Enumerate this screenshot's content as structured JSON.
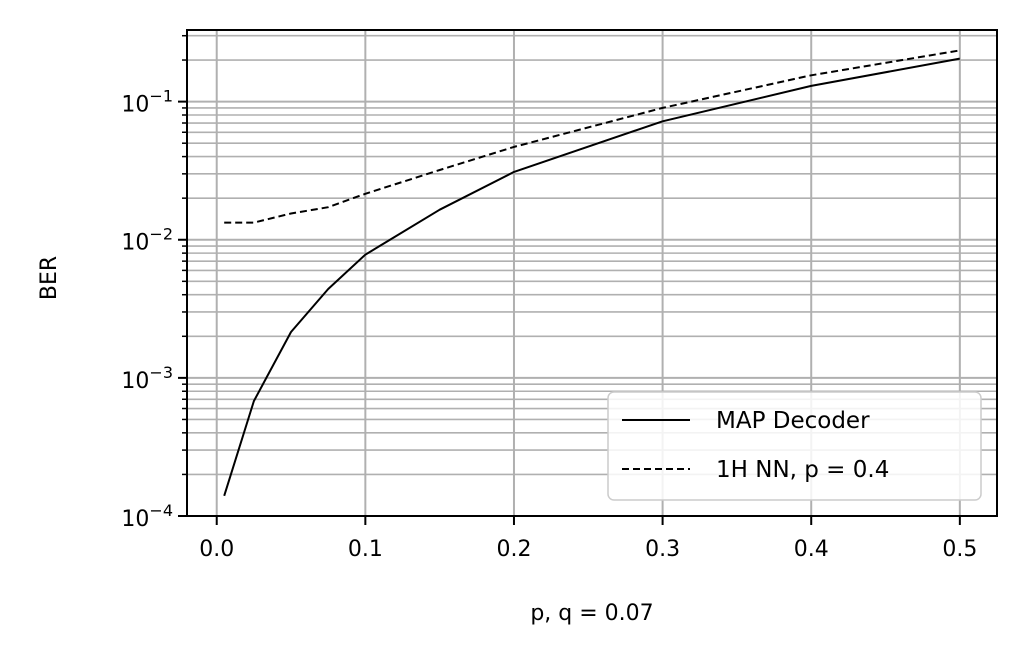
{
  "chart_data": {
    "type": "line",
    "title": "",
    "xlabel": "p, q = 0.07",
    "ylabel": "BER",
    "xlim": [
      -0.02,
      0.525
    ],
    "ylim": [
      0.0001,
      0.33
    ],
    "yscale": "log",
    "grid": true,
    "legend_position": "lower-right",
    "x_ticks": [
      {
        "value": 0.0,
        "label": "0.0"
      },
      {
        "value": 0.1,
        "label": "0.1"
      },
      {
        "value": 0.2,
        "label": "0.2"
      },
      {
        "value": 0.3,
        "label": "0.3"
      },
      {
        "value": 0.4,
        "label": "0.4"
      },
      {
        "value": 0.5,
        "label": "0.5"
      }
    ],
    "y_ticks": [
      {
        "value": 0.0001,
        "label": "10",
        "exp": "−4"
      },
      {
        "value": 0.001,
        "label": "10",
        "exp": "−3"
      },
      {
        "value": 0.01,
        "label": "10",
        "exp": "−2"
      },
      {
        "value": 0.1,
        "label": "10",
        "exp": "−1"
      }
    ],
    "series": [
      {
        "name": "MAP Decoder",
        "style": "solid",
        "color": "#000000",
        "x": [
          0.005,
          0.025,
          0.05,
          0.075,
          0.1,
          0.15,
          0.2,
          0.3,
          0.4,
          0.5
        ],
        "y": [
          0.00014,
          0.00068,
          0.00215,
          0.0044,
          0.0078,
          0.0165,
          0.031,
          0.072,
          0.13,
          0.205
        ]
      },
      {
        "name": "1H NN, p = 0.4",
        "style": "dashed",
        "color": "#000000",
        "x": [
          0.005,
          0.025,
          0.05,
          0.075,
          0.1,
          0.15,
          0.2,
          0.3,
          0.4,
          0.5
        ],
        "y": [
          0.0133,
          0.0133,
          0.0155,
          0.0172,
          0.0215,
          0.032,
          0.047,
          0.09,
          0.155,
          0.235
        ]
      }
    ]
  }
}
